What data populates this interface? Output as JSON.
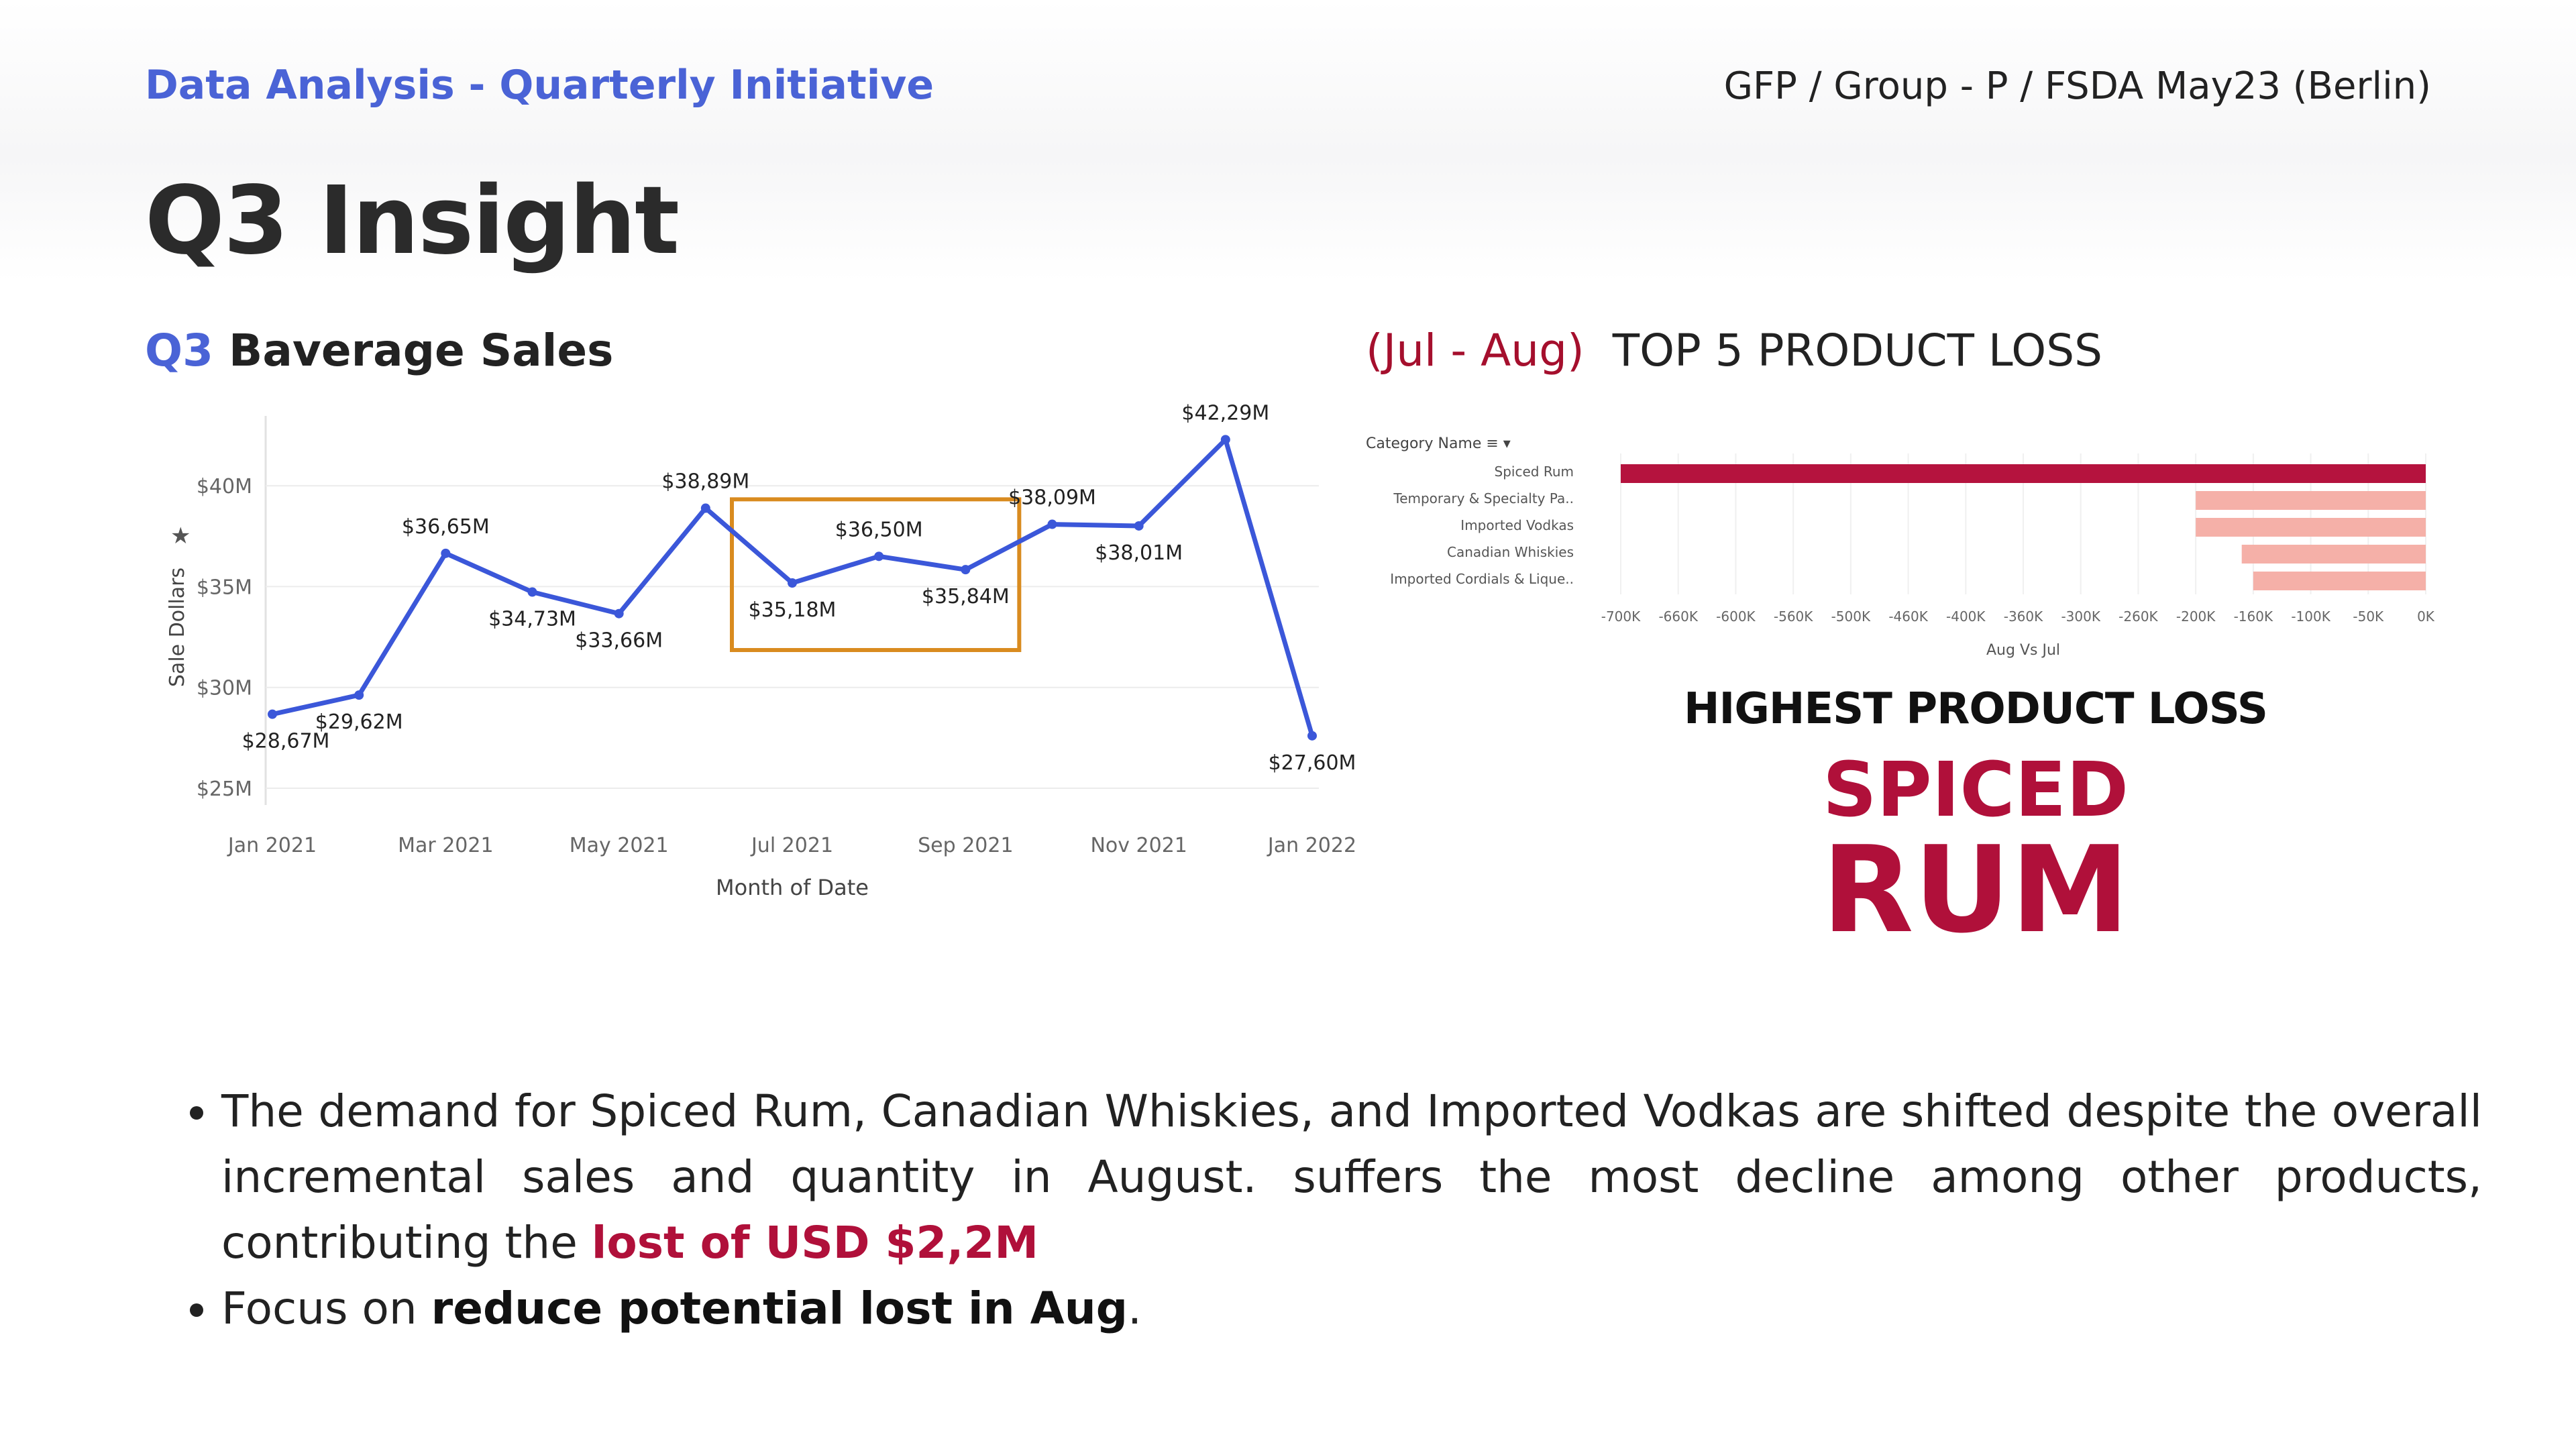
{
  "header": {
    "kicker": "Data Analysis - Quarterly Initiative",
    "course": "GFP / Group - P / FSDA May23 (Berlin)",
    "title": "Q3 Insight"
  },
  "left_section": {
    "accent": "Q3",
    "title": " Baverage Sales"
  },
  "right_section": {
    "period": "(Jul - Aug)",
    "title": "TOP 5 PRODUCT LOSS"
  },
  "highlight": {
    "heading": "HIGHEST PRODUCT LOSS",
    "word1": "SPICED",
    "word2": "RUM"
  },
  "bullets": {
    "b1_text": "The demand for Spiced Rum, Canadian Whiskies, and Imported Vodkas are shifted despite the overall incremental sales and quantity in August. suffers the most decline among other products, contributing the ",
    "b1_highlight": "lost of USD $2,2M",
    "b2_pre": "Focus on ",
    "b2_bold": "reduce potential lost in Aug",
    "b2_post": "."
  },
  "colors": {
    "accent_blue": "#4a63d6",
    "brand_red": "#b0103a",
    "line": "#3b57d9",
    "highlight_box": "#d98b1f",
    "bar_main": "#b5133e",
    "bar_light": "#f5b0a8"
  },
  "chart_data": [
    {
      "type": "line",
      "ylabel": "Sale Dollars",
      "xlabel": "Month of Date",
      "x_ticks": [
        "Jan 2021",
        "Mar 2021",
        "May 2021",
        "Jul 2021",
        "Sep 2021",
        "Nov 2021",
        "Jan 2022"
      ],
      "y_ticks": [
        "$25M",
        "$30M",
        "$35M",
        "$40M"
      ],
      "ylim": [
        24.5,
        42.8
      ],
      "x": [
        "Jan 2021",
        "Feb 2021",
        "Mar 2021",
        "Apr 2021",
        "May 2021",
        "Jun 2021",
        "Jul 2021",
        "Aug 2021",
        "Sep 2021",
        "Oct 2021",
        "Nov 2021",
        "Dec 2021",
        "Jan 2022"
      ],
      "values": [
        28.67,
        29.62,
        36.65,
        34.73,
        33.66,
        38.89,
        35.18,
        36.5,
        35.84,
        38.09,
        38.01,
        42.29,
        27.6
      ],
      "labels": [
        "$28,67M",
        "$29,62M",
        "$36,65M",
        "$34,73M",
        "$33,66M",
        "$38,89M",
        "$35,18M",
        "$36,50M",
        "$35,84M",
        "$38,09M",
        "$38,01M",
        "$42,29M",
        "$27,60M"
      ],
      "highlight_range": [
        "Jul 2021",
        "Sep 2021"
      ],
      "grid": true
    },
    {
      "type": "bar",
      "orientation": "horizontal",
      "category_header": "Category Name",
      "categories": [
        "Spiced Rum",
        "Temporary & Specialty Pa..",
        "Imported Vodkas",
        "Canadian Whiskies",
        "Imported Cordials & Lique.."
      ],
      "values": [
        -700,
        -200,
        -200,
        -160,
        -150
      ],
      "xlabel": "Aug Vs Jul",
      "x_ticks": [
        "-700K",
        "-660K",
        "-600K",
        "-560K",
        "-500K",
        "-460K",
        "-400K",
        "-360K",
        "-300K",
        "-260K",
        "-200K",
        "-160K",
        "-100K",
        "-50K",
        "0K"
      ],
      "xlim": [
        -700,
        0
      ],
      "unit": "K"
    }
  ]
}
